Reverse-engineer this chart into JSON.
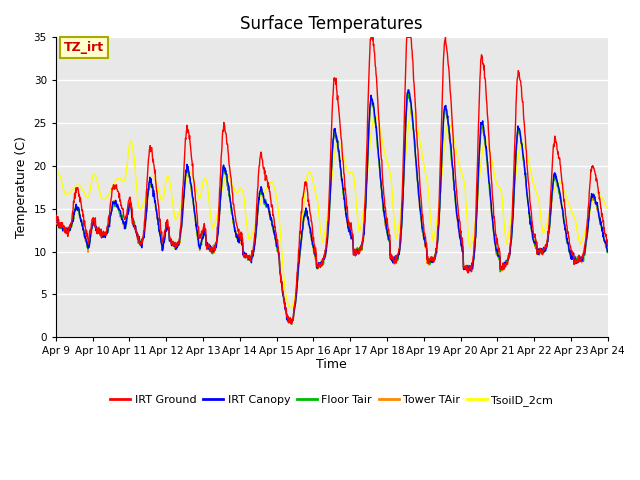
{
  "title": "Surface Temperatures",
  "ylabel": "Temperature (C)",
  "xlabel": "Time",
  "ylim": [
    0,
    35
  ],
  "ytick_values": [
    0,
    5,
    10,
    15,
    20,
    25,
    30,
    35
  ],
  "xtick_labels": [
    "Apr 9",
    "Apr 10",
    "Apr 11",
    "Apr 12",
    "Apr 13",
    "Apr 14",
    "Apr 15",
    "Apr 16",
    "Apr 17",
    "Apr 18",
    "Apr 19",
    "Apr 20",
    "Apr 21",
    "Apr 22",
    "Apr 23",
    "Apr 24"
  ],
  "legend_labels": [
    "IRT Ground",
    "IRT Canopy",
    "Floor Tair",
    "Tower TAir",
    "TsoilD_2cm"
  ],
  "legend_colors": [
    "#ff0000",
    "#0000ff",
    "#00bb00",
    "#ff8800",
    "#ffff00"
  ],
  "annotation_text": "TZ_irt",
  "annotation_color": "#cc0000",
  "annotation_bg": "#ffffcc",
  "annotation_border": "#aaaa00",
  "fig_facecolor": "#ffffff",
  "plot_facecolor": "#e8e8e8",
  "grid_color": "#ffffff",
  "title_fontsize": 12,
  "axis_fontsize": 9,
  "tick_fontsize": 7.5
}
